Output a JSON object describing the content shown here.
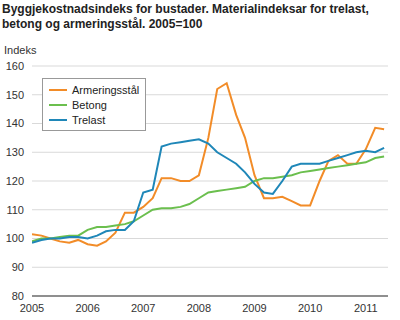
{
  "chart_data": {
    "type": "line",
    "title": "Byggjekostnadsindeks for bustader. Materialindeksar for trelast, betong og armeringsstål. 2005=100",
    "y_label": "Indeks",
    "x": [
      2005.0,
      2005.17,
      2005.33,
      2005.5,
      2005.67,
      2005.83,
      2006.0,
      2006.17,
      2006.33,
      2006.5,
      2006.67,
      2006.83,
      2007.0,
      2007.17,
      2007.33,
      2007.5,
      2007.67,
      2007.83,
      2008.0,
      2008.17,
      2008.33,
      2008.5,
      2008.67,
      2008.83,
      2009.0,
      2009.17,
      2009.33,
      2009.5,
      2009.67,
      2009.83,
      2010.0,
      2010.17,
      2010.33,
      2010.5,
      2010.67,
      2010.83,
      2011.0,
      2011.17,
      2011.33
    ],
    "series": [
      {
        "name": "Armeringsstål",
        "color": "#f28c28",
        "values": [
          101.5,
          101,
          100,
          99,
          98.5,
          99.5,
          98,
          97.5,
          99,
          102,
          109,
          109,
          111,
          114,
          121,
          121,
          120,
          120,
          122,
          135,
          152,
          154,
          143,
          135,
          122,
          114,
          114,
          114.5,
          113,
          111.5,
          111.5,
          120,
          127,
          129,
          126,
          126,
          131,
          138.5,
          138
        ]
      },
      {
        "name": "Betong",
        "color": "#6bbf4e",
        "values": [
          99,
          100,
          100,
          100.5,
          101,
          101,
          103,
          104,
          104,
          104.5,
          105,
          106,
          108,
          110,
          110.5,
          110.5,
          111,
          112,
          114,
          116,
          116.5,
          117,
          117.5,
          118,
          120,
          121,
          121,
          121.5,
          122,
          123,
          123.5,
          124,
          124.5,
          125,
          125.5,
          126,
          126.5,
          128,
          128.5
        ]
      },
      {
        "name": "Trelast",
        "color": "#1f87b8",
        "values": [
          98.5,
          99.5,
          100,
          100,
          100.5,
          100.5,
          100,
          101,
          102.5,
          103,
          103,
          106,
          116,
          117,
          132,
          133,
          133.5,
          134,
          134.5,
          133,
          130,
          128,
          126,
          123,
          119,
          116,
          115.5,
          120,
          125,
          126,
          126,
          126,
          127,
          128,
          129,
          130,
          130.5,
          130,
          131.5
        ]
      }
    ],
    "xlim": [
      2005,
      2011.4
    ],
    "xticks": [
      2005,
      2006,
      2007,
      2008,
      2009,
      2010,
      2011
    ],
    "ylim": [
      80,
      160
    ],
    "yticks": [
      80,
      90,
      100,
      110,
      120,
      130,
      140,
      150,
      160
    ],
    "grid": true,
    "legend": "top-left"
  }
}
